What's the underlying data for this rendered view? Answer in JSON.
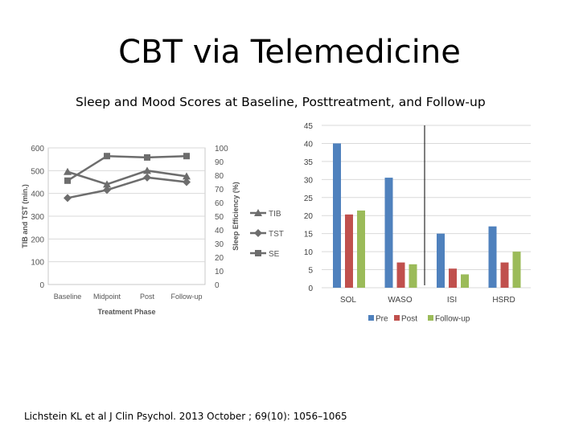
{
  "slide": {
    "title": "CBT via Telemedicine",
    "subtitle": "Sleep and Mood Scores at Baseline, Posttreatment, and Follow-up",
    "citation": "Lichstein KL et al J Clin Psychol. 2013 October ; 69(10): 1056–1065"
  },
  "chart_data": [
    {
      "type": "line",
      "title": "",
      "xlabel": "Treatment Phase",
      "ylabel": "TIB and TST (min.)",
      "y2label": "Sleep Efficiency (%)",
      "categories": [
        "Baseline",
        "Midpoint",
        "Post",
        "Follow-up"
      ],
      "ylim": [
        0,
        600
      ],
      "y2lim": [
        0,
        100
      ],
      "yticks": [
        "0",
        "100",
        "200",
        "300",
        "400",
        "500",
        "600"
      ],
      "y2ticks": [
        "0",
        "10",
        "20",
        "30",
        "40",
        "50",
        "60",
        "70",
        "80",
        "90",
        "100"
      ],
      "series": [
        {
          "name": "TIB",
          "axis": "left",
          "marker": "triangle",
          "values": [
            495,
            440,
            500,
            475
          ]
        },
        {
          "name": "TST",
          "axis": "left",
          "marker": "diamond",
          "values": [
            380,
            415,
            470,
            450
          ]
        },
        {
          "name": "SE",
          "axis": "right",
          "marker": "square",
          "values": [
            76,
            94,
            93,
            94
          ]
        }
      ],
      "colors": {
        "line": "#6d6d6d",
        "grid": "#d9d9d9",
        "text": "#555555"
      }
    },
    {
      "type": "bar",
      "title": "",
      "categories": [
        "SOL",
        "WASO",
        "ISI",
        "HSRD"
      ],
      "ylim": [
        0,
        45
      ],
      "yticks": [
        "0",
        "5",
        "10",
        "15",
        "20",
        "25",
        "30",
        "35",
        "40",
        "45"
      ],
      "series": [
        {
          "name": "Pre",
          "color": "#4f81bd",
          "values": [
            40,
            30.5,
            15,
            17
          ]
        },
        {
          "name": "Post",
          "color": "#c0504d",
          "values": [
            20.3,
            7,
            5.3,
            7
          ]
        },
        {
          "name": "Follow-up",
          "color": "#9bbb59",
          "values": [
            21.4,
            6.5,
            3.7,
            10
          ]
        }
      ],
      "colors": {
        "grid": "#d9d9d9",
        "text": "#404040"
      }
    }
  ]
}
